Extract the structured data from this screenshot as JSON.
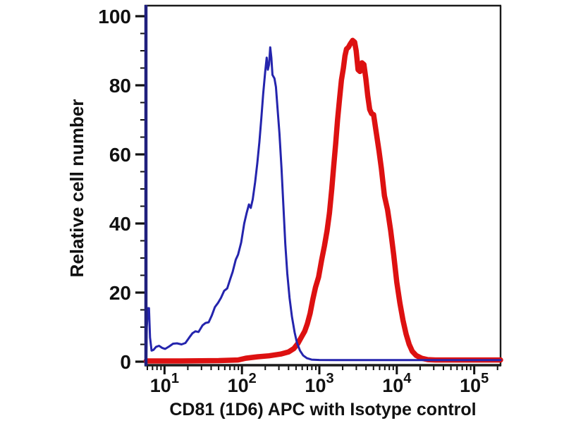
{
  "figure": {
    "background": "#ffffff",
    "frame_color": "#1a1a1a",
    "left_axis_color": "#20207e",
    "tick_color": "#111111",
    "text_color": "#111111"
  },
  "chart_data": {
    "type": "line",
    "subtype": "flow-cytometry-histogram",
    "title": "",
    "xlabel": "CD81 (1D6) APC with Isotype control",
    "ylabel": "Relative cell number",
    "x_scale": "log10",
    "x_domain_log10": [
      0.76,
      5.34
    ],
    "ylim": [
      -1.02,
      103.06
    ],
    "grid": false,
    "legend_position": "none",
    "x_ticks": [
      {
        "base": "10",
        "exp": "1",
        "value": 10
      },
      {
        "base": "10",
        "exp": "2",
        "value": 100
      },
      {
        "base": "10",
        "exp": "3",
        "value": 1000
      },
      {
        "base": "10",
        "exp": "4",
        "value": 10000
      },
      {
        "base": "10",
        "exp": "5",
        "value": 100000
      }
    ],
    "y_ticks": [
      {
        "label": "0",
        "value": 0
      },
      {
        "label": "20",
        "value": 20
      },
      {
        "label": "40",
        "value": 40
      },
      {
        "label": "60",
        "value": 60
      },
      {
        "label": "80",
        "value": 80
      },
      {
        "label": "100",
        "value": 100
      }
    ],
    "y_minor_tick_step": 5,
    "series": [
      {
        "name": "CD81 (1D6) APC",
        "slug": "cd81-apc-curve",
        "color": "#dd1111",
        "stroke_width": 7.5,
        "points": [
          [
            5.8,
            0.2
          ],
          [
            16,
            0.2
          ],
          [
            50,
            0.3
          ],
          [
            89,
            0.5
          ],
          [
            112,
            1.0
          ],
          [
            158,
            1.4
          ],
          [
            224,
            1.7
          ],
          [
            316,
            2.2
          ],
          [
            398,
            2.8
          ],
          [
            468,
            3.8
          ],
          [
            525,
            5.2
          ],
          [
            589,
            7.2
          ],
          [
            646,
            8.8
          ],
          [
            700,
            11.0
          ],
          [
            759,
            14.0
          ],
          [
            822,
            18.0
          ],
          [
            891,
            21.5
          ],
          [
            977,
            24.5
          ],
          [
            1072,
            29.5
          ],
          [
            1162,
            33.5
          ],
          [
            1259,
            38.0
          ],
          [
            1349,
            43.0
          ],
          [
            1445,
            50.0
          ],
          [
            1531,
            56.5
          ],
          [
            1622,
            63.0
          ],
          [
            1718,
            70.0
          ],
          [
            1820,
            76.0
          ],
          [
            1928,
            81.5
          ],
          [
            2042,
            85.0
          ],
          [
            2138,
            88.5
          ],
          [
            2239,
            90.5
          ],
          [
            2371,
            91.0
          ],
          [
            2512,
            92.0
          ],
          [
            2692,
            93.0
          ],
          [
            2851,
            92.5
          ],
          [
            2985,
            90.0
          ],
          [
            3162,
            84.5
          ],
          [
            3350,
            84.0
          ],
          [
            3548,
            86.5
          ],
          [
            3758,
            86.0
          ],
          [
            3981,
            82.0
          ],
          [
            4217,
            77.0
          ],
          [
            4467,
            73.0
          ],
          [
            4732,
            71.8
          ],
          [
            5012,
            71.5
          ],
          [
            5370,
            67.0
          ],
          [
            5888,
            61.0
          ],
          [
            6310,
            56.0
          ],
          [
            6918,
            48.0
          ],
          [
            7586,
            44.0
          ],
          [
            8318,
            38.0
          ],
          [
            9120,
            31.0
          ],
          [
            10000,
            23.0
          ],
          [
            10965,
            17.0
          ],
          [
            12023,
            12.0
          ],
          [
            13183,
            8.0
          ],
          [
            14454,
            5.0
          ],
          [
            15849,
            3.0
          ],
          [
            17783,
            1.8
          ],
          [
            20893,
            1.0
          ],
          [
            25119,
            0.6
          ],
          [
            31623,
            0.5
          ],
          [
            63096,
            0.5
          ],
          [
            126000,
            0.5
          ],
          [
            219000,
            0.5
          ]
        ]
      },
      {
        "name": "Isotype control",
        "slug": "isotype-control-curve",
        "color": "#2424ad",
        "stroke_width": 3,
        "points": [
          [
            5.8,
            0.0
          ],
          [
            5.9,
            10.0
          ],
          [
            6.1,
            15.5
          ],
          [
            6.3,
            15.5
          ],
          [
            6.5,
            7.0
          ],
          [
            6.8,
            3.2
          ],
          [
            7.2,
            3.4
          ],
          [
            7.8,
            4.3
          ],
          [
            8.5,
            4.6
          ],
          [
            9.3,
            4.0
          ],
          [
            10.2,
            3.7
          ],
          [
            11.5,
            4.4
          ],
          [
            12.9,
            5.2
          ],
          [
            14.5,
            5.3
          ],
          [
            16.6,
            5.0
          ],
          [
            18.6,
            5.4
          ],
          [
            20.9,
            7.0
          ],
          [
            22.9,
            8.2
          ],
          [
            25.1,
            8.8
          ],
          [
            27.5,
            8.6
          ],
          [
            30.9,
            10.5
          ],
          [
            33.9,
            11.2
          ],
          [
            37.2,
            11.4
          ],
          [
            40.7,
            13.3
          ],
          [
            44.7,
            15.8
          ],
          [
            49,
            17.0
          ],
          [
            53.7,
            18.5
          ],
          [
            58.9,
            20.5
          ],
          [
            64.6,
            21.2
          ],
          [
            70.8,
            24.0
          ],
          [
            75.9,
            26.0
          ],
          [
            83.2,
            29.5
          ],
          [
            89.1,
            31.0
          ],
          [
            97.7,
            34.5
          ],
          [
            107,
            40.0
          ],
          [
            115,
            43.0
          ],
          [
            123,
            45.5
          ],
          [
            130,
            44.5
          ],
          [
            138,
            47.0
          ],
          [
            148,
            52.0
          ],
          [
            158,
            57.5
          ],
          [
            168,
            63.5
          ],
          [
            178,
            70.5
          ],
          [
            188,
            77.5
          ],
          [
            200,
            84.0
          ],
          [
            209,
            88.0
          ],
          [
            216,
            84.5
          ],
          [
            224,
            86.0
          ],
          [
            232,
            91.0
          ],
          [
            240,
            88.0
          ],
          [
            248,
            83.0
          ],
          [
            263,
            82.0
          ],
          [
            275,
            79.5
          ],
          [
            288,
            73.5
          ],
          [
            305,
            66.0
          ],
          [
            324,
            56.0
          ],
          [
            343,
            45.0
          ],
          [
            363,
            34.0
          ],
          [
            385,
            25.5
          ],
          [
            412,
            18.5
          ],
          [
            442,
            13.0
          ],
          [
            479,
            8.5
          ],
          [
            513,
            5.5
          ],
          [
            562,
            3.2
          ],
          [
            617,
            1.8
          ],
          [
            692,
            1.0
          ],
          [
            794,
            0.6
          ],
          [
            1000,
            0.5
          ],
          [
            1600,
            0.45
          ],
          [
            4000,
            0.45
          ],
          [
            16000,
            0.45
          ],
          [
            100000,
            0.45
          ],
          [
            219000,
            0.45
          ]
        ]
      }
    ]
  }
}
